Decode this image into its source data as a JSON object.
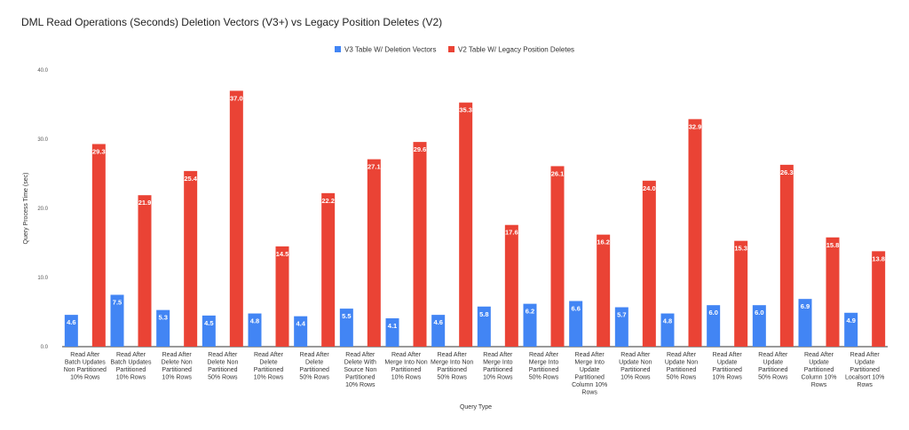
{
  "chart_data": {
    "type": "bar",
    "title": "DML Read Operations (Seconds) Deletion Vectors (V3+) vs Legacy Position Deletes (V2)",
    "xlabel": "Query Type",
    "ylabel": "Query Process Time (sec)",
    "ylim": [
      0,
      40
    ],
    "yticks": [
      "0.0",
      "10.0",
      "20.0",
      "30.0",
      "40.0"
    ],
    "grid": false,
    "legend_position": "top",
    "categories": [
      [
        "Read After",
        "Batch Updates",
        "Non Partitioned",
        "10% Rows"
      ],
      [
        "Read After",
        "Batch Updates",
        "Partitioned",
        "10% Rows"
      ],
      [
        "Read After",
        "Delete Non",
        "Partitioned",
        "10% Rows"
      ],
      [
        "Read After",
        "Delete Non",
        "Partitioned",
        "50% Rows"
      ],
      [
        "Read After",
        "Delete",
        "Partitioned",
        "10% Rows"
      ],
      [
        "Read After",
        "Delete",
        "Partitioned",
        "50% Rows"
      ],
      [
        "Read After",
        "Delete With",
        "Source Non",
        "Partitioned",
        "10% Rows"
      ],
      [
        "Read After",
        "Merge Into Non",
        "Partitioned",
        "10% Rows"
      ],
      [
        "Read After",
        "Merge Into Non",
        "Partitioned",
        "50% Rows"
      ],
      [
        "Read After",
        "Merge Into",
        "Partitioned",
        "10% Rows"
      ],
      [
        "Read After",
        "Merge Into",
        "Partitioned",
        "50% Rows"
      ],
      [
        "Read After",
        "Merge Into",
        "Update",
        "Partitioned",
        "Column 10%",
        "Rows"
      ],
      [
        "Read After",
        "Update Non",
        "Partitioned",
        "10% Rows"
      ],
      [
        "Read After",
        "Update Non",
        "Partitioned",
        "50% Rows"
      ],
      [
        "Read After",
        "Update",
        "Partitioned",
        "10% Rows"
      ],
      [
        "Read After",
        "Update",
        "Partitioned",
        "50% Rows"
      ],
      [
        "Read After",
        "Update",
        "Partitioned",
        "Column 10%",
        "Rows"
      ],
      [
        "Read After",
        "Update",
        "Partitioned",
        "Localsort 10%",
        "Rows"
      ]
    ],
    "series": [
      {
        "name": "V3 Table W/ Deletion Vectors",
        "color": "#4285f4",
        "values": [
          4.6,
          7.5,
          5.3,
          4.5,
          4.8,
          4.4,
          5.5,
          4.1,
          4.6,
          5.8,
          6.2,
          6.6,
          5.7,
          4.8,
          6.0,
          6.0,
          6.9,
          4.9
        ],
        "labels": [
          "4.6",
          "7.5",
          "5.3",
          "4.5",
          "4.8",
          "4.4",
          "5.5",
          "4.1",
          "4.6",
          "5.8",
          "6.2",
          "6.6",
          "5.7",
          "4.8",
          "6.0",
          "6.0",
          "6.9",
          "4.9"
        ]
      },
      {
        "name": "V2 Table W/ Legacy Position Deletes",
        "color": "#ea4335",
        "values": [
          29.3,
          21.9,
          25.4,
          37.0,
          14.5,
          22.2,
          27.1,
          29.6,
          35.3,
          17.6,
          26.1,
          16.2,
          24.0,
          32.9,
          15.3,
          26.3,
          15.8,
          13.8
        ],
        "labels": [
          "29.3",
          "21.9",
          "25.4",
          "37.0",
          "14.5",
          "22.2",
          "27.1",
          "29.6",
          "35.3",
          "17.6",
          "26.1",
          "16.2",
          "24.0",
          "32.9",
          "15.3",
          "26.3",
          "15.8",
          "13.8"
        ]
      }
    ]
  }
}
